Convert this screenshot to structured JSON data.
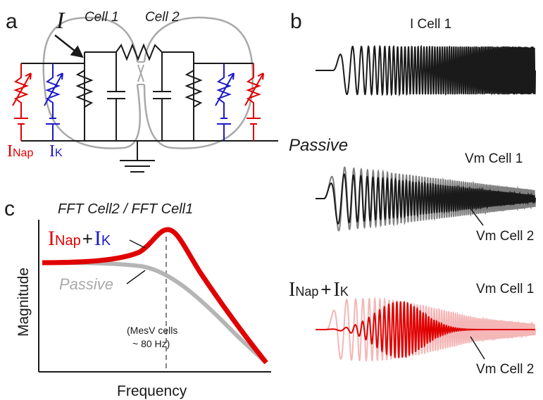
{
  "colors": {
    "red": "#e00000",
    "blue": "#1a1ac8",
    "gray": "#a9a9a9",
    "light_red": "#f4b6b6",
    "dark": "#1a1a1a"
  },
  "panel_a": {
    "label": "a",
    "current_symbol": "I",
    "cell1_label": "Cell 1",
    "cell2_label": "Cell 2",
    "inap_main": "I",
    "inap_sub": "Nap",
    "ik_main": "I",
    "ik_sub": "K"
  },
  "panel_b": {
    "label": "b",
    "top_trace_label": "I Cell 1",
    "passive_title": "Passive",
    "passive_vm1": "Vm Cell 1",
    "passive_vm2": "Vm Cell 2",
    "active_title_inap_main": "I",
    "active_title_inap_sub": "Nap",
    "active_title_plus": "+",
    "active_title_ik_main": "I",
    "active_title_ik_sub": "K",
    "active_vm1": "Vm Cell 1",
    "active_vm2": "Vm Cell 2"
  },
  "panel_c": {
    "label": "c",
    "title": "FFT Cell2 / FFT Cell1",
    "legend_inap_main": "I",
    "legend_inap_sub": "Nap",
    "legend_plus": "+",
    "legend_ik_main": "I",
    "legend_ik_sub": "K",
    "legend_passive": "Passive",
    "peak_note_line1": "(MesV cells",
    "peak_note_line2": "~ 80 Hz)",
    "xlabel": "Frequency",
    "ylabel": "Magnitude"
  }
}
